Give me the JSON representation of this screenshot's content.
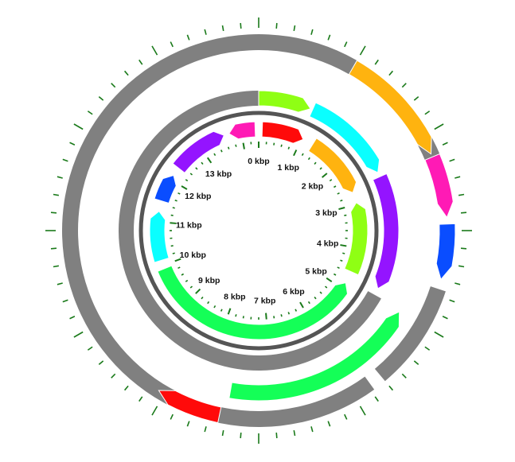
{
  "plasmid_map": {
    "total_kbp": 14.4,
    "ruler_labels": [
      "0 kbp",
      "1 kbp",
      "2 kbp",
      "3 kbp",
      "4 kbp",
      "5 kbp",
      "6 kbp",
      "7 kbp",
      "8 kbp",
      "9 kbp",
      "10 kbp",
      "11 kbp",
      "12 kbp",
      "13 kbp"
    ],
    "backbone_color": "#555555",
    "tick_color": "#1a7a1a",
    "tracks": [
      {
        "name": "inner-feature-ring",
        "features": [
          {
            "name": "red",
            "start_deg": 2,
            "end_deg": 26,
            "dir": "cw",
            "color": "#ff0a0a"
          },
          {
            "name": "orange",
            "start_deg": 32,
            "end_deg": 68,
            "dir": "cw",
            "color": "#ffb30f"
          },
          {
            "name": "lime",
            "start_deg": 74,
            "end_deg": 114,
            "dir": "ccw",
            "color": "#8fff14"
          },
          {
            "name": "green",
            "start_deg": 121,
            "end_deg": 248,
            "dir": "ccw",
            "color": "#14ff57"
          },
          {
            "name": "cyan",
            "start_deg": 253,
            "end_deg": 281,
            "dir": "cw",
            "color": "#0affff"
          },
          {
            "name": "blue",
            "start_deg": 287,
            "end_deg": 303,
            "dir": "cw",
            "color": "#0a4dff"
          },
          {
            "name": "purple",
            "start_deg": 308,
            "end_deg": 340,
            "dir": "cw",
            "color": "#9414ff"
          },
          {
            "name": "magenta",
            "start_deg": 343,
            "end_deg": 358,
            "dir": "ccw",
            "color": "#ff1ab5"
          }
        ]
      },
      {
        "name": "middle-feature-ring",
        "features": [
          {
            "name": "gray-arc",
            "start_deg": 119,
            "end_deg": 360,
            "dir": "none",
            "color": "#808080"
          },
          {
            "name": "lime",
            "start_deg": 0,
            "end_deg": 23,
            "dir": "cw",
            "color": "#8fff14"
          },
          {
            "name": "cyan",
            "start_deg": 24,
            "end_deg": 64,
            "dir": "cw",
            "color": "#0affff"
          },
          {
            "name": "purple",
            "start_deg": 66,
            "end_deg": 116,
            "dir": "cw",
            "color": "#9414ff"
          }
        ]
      },
      {
        "name": "outer-feature-ring",
        "features": [
          {
            "name": "gray-arc-main",
            "start_deg": 144,
            "end_deg": 428,
            "dir": "none",
            "color": "#808080"
          },
          {
            "name": "orange",
            "start_deg": 30,
            "end_deg": 66,
            "dir": "cw",
            "color": "#ffb30f"
          },
          {
            "name": "magenta",
            "start_deg": 67,
            "end_deg": 86,
            "dir": "cw",
            "color": "#ff1ab5"
          },
          {
            "name": "blue",
            "start_deg": 88,
            "end_deg": 105,
            "dir": "cw",
            "color": "#0a4dff"
          },
          {
            "name": "gray-arc-right",
            "start_deg": 108,
            "end_deg": 140,
            "dir": "none",
            "color": "#808080"
          },
          {
            "name": "green",
            "start_deg": 120,
            "end_deg": 190,
            "dir": "ccw",
            "color": "#14ff57"
          },
          {
            "name": "red",
            "start_deg": 192,
            "end_deg": 212,
            "dir": "cw",
            "color": "#ff0a0a"
          }
        ]
      }
    ]
  }
}
